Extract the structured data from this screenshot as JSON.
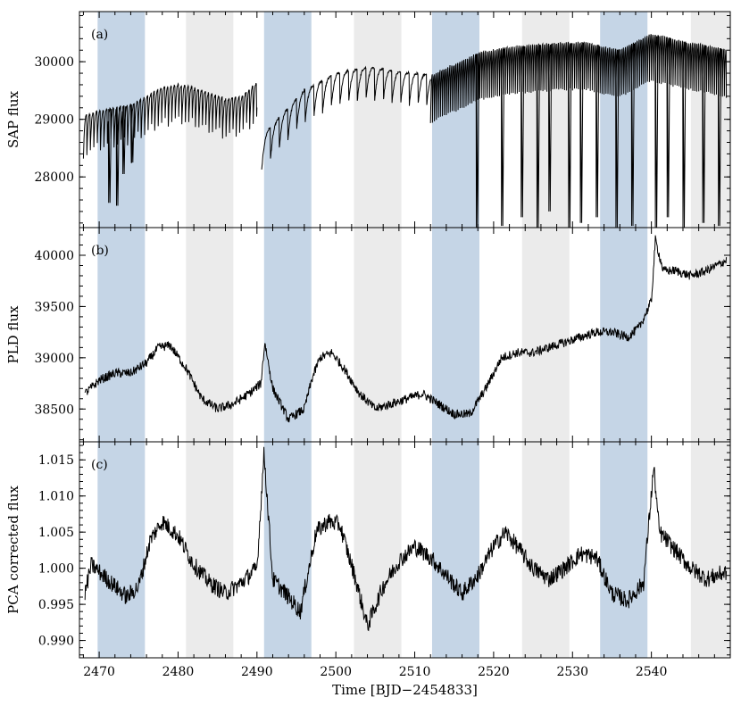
{
  "chart_data": {
    "type": "line",
    "xlabel": "Time [BJD−2454833]",
    "xlim": [
      2467.5,
      2550
    ],
    "xticks": [
      2470,
      2480,
      2490,
      2500,
      2510,
      2520,
      2530,
      2540
    ],
    "shade_colors": {
      "blue": "#c5d5e6",
      "gray": "#ebebeb"
    },
    "line_color": "#000000",
    "bands": [
      {
        "start": 2469.8,
        "end": 2475.8,
        "color": "blue"
      },
      {
        "start": 2481.0,
        "end": 2487.0,
        "color": "gray"
      },
      {
        "start": 2490.9,
        "end": 2496.9,
        "color": "blue"
      },
      {
        "start": 2502.3,
        "end": 2508.3,
        "color": "gray"
      },
      {
        "start": 2512.2,
        "end": 2518.2,
        "color": "blue"
      },
      {
        "start": 2523.6,
        "end": 2529.6,
        "color": "gray"
      },
      {
        "start": 2533.5,
        "end": 2539.5,
        "color": "blue"
      },
      {
        "start": 2545.0,
        "end": 2550.0,
        "color": "gray"
      }
    ],
    "panels": [
      {
        "tag": "(a)",
        "ylabel": "SAP flux",
        "ylim": [
          27120,
          30870
        ],
        "yticks": [
          28000,
          29000,
          30000
        ],
        "yticklabels": [
          "28000",
          "29000",
          "30000"
        ],
        "series": {
          "segments": [
            {
              "x": [
                2468.0,
                2470.0,
                2472.0,
                2474.0,
                2476.0,
                2478.0,
                2480.0,
                2482.0,
                2484.0,
                2486.0,
                2488.0,
                2490.0
              ],
              "y": [
                29050,
                29150,
                29200,
                29250,
                29400,
                29550,
                29600,
                29550,
                29450,
                29350,
                29400,
                29630
              ],
              "saw": {
                "amp": 820,
                "period": 0.43
              },
              "dips": [
                [
                  2471.2,
                  27550
                ],
                [
                  2472.2,
                  27500
                ],
                [
                  2473.0,
                  28050
                ],
                [
                  2474.1,
                  28250
                ]
              ]
            },
            {
              "x": [
                2490.6,
                2492.0,
                2494.0,
                2496.0,
                2498.0,
                2500.0,
                2502.0,
                2504.0,
                2506.0,
                2508.0,
                2510.0,
                2512.0
              ],
              "y": [
                28700,
                28900,
                29200,
                29500,
                29650,
                29800,
                29850,
                29900,
                29870,
                29820,
                29800,
                29780
              ],
              "saw": {
                "amp": 650,
                "period": 1.1
              },
              "dips": []
            },
            {
              "x": [
                2512.0,
                2514.0,
                2516.0,
                2518.0,
                2520.0,
                2522.0,
                2524.0,
                2526.0,
                2528.0,
                2530.0,
                2532.0,
                2534.0,
                2536.0,
                2538.0,
                2540.0,
                2542.0,
                2544.0,
                2546.0,
                2548.0,
                2549.5
              ],
              "y": [
                29750,
                29900,
                30000,
                30150,
                30200,
                30250,
                30280,
                30300,
                30320,
                30330,
                30330,
                30250,
                30200,
                30350,
                30480,
                30420,
                30350,
                30300,
                30250,
                30200
              ],
              "saw": {
                "amp": 900,
                "period": 0.25
              },
              "dips": [
                [
                  2517.8,
                  27100
                ],
                [
                  2521.0,
                  27150
                ],
                [
                  2523.5,
                  27300
                ],
                [
                  2525.5,
                  27100
                ],
                [
                  2527.0,
                  27400
                ],
                [
                  2529.5,
                  27100
                ],
                [
                  2531.0,
                  27200
                ],
                [
                  2533.0,
                  27300
                ],
                [
                  2535.5,
                  27100
                ],
                [
                  2537.5,
                  27150
                ],
                [
                  2540.5,
                  27100
                ],
                [
                  2542.0,
                  27300
                ],
                [
                  2544.0,
                  27100
                ],
                [
                  2546.5,
                  27200
                ],
                [
                  2548.5,
                  27150
                ]
              ]
            }
          ]
        }
      },
      {
        "tag": "(b)",
        "ylabel": "PLD flux",
        "ylim": [
          38180,
          40270
        ],
        "yticks": [
          38500,
          39000,
          39500,
          40000
        ],
        "yticklabels": [
          "38500",
          "39000",
          "39500",
          "40000"
        ],
        "series": {
          "x": [
            2468.2,
            2470.0,
            2472.0,
            2474.0,
            2476.0,
            2477.5,
            2479.0,
            2481.0,
            2483.0,
            2485.0,
            2487.0,
            2489.0,
            2490.5,
            2491.0,
            2492.0,
            2494.0,
            2496.0,
            2497.0,
            2498.0,
            2499.5,
            2501.0,
            2503.0,
            2505.0,
            2507.0,
            2509.0,
            2511.0,
            2513.0,
            2515.0,
            2517.0,
            2519.0,
            2521.0,
            2523.0,
            2525.0,
            2527.0,
            2529.0,
            2531.0,
            2533.0,
            2535.0,
            2537.0,
            2538.5,
            2540.0,
            2540.5,
            2541.5,
            2543.0,
            2545.0,
            2547.0,
            2549.5
          ],
          "y": [
            38650,
            38780,
            38850,
            38850,
            38950,
            39100,
            39120,
            38900,
            38600,
            38500,
            38550,
            38650,
            38750,
            39150,
            38700,
            38400,
            38500,
            38800,
            39000,
            39050,
            38900,
            38650,
            38500,
            38550,
            38600,
            38650,
            38550,
            38450,
            38450,
            38700,
            39000,
            39050,
            39050,
            39100,
            39150,
            39200,
            39250,
            39250,
            39200,
            39300,
            39550,
            40150,
            39850,
            39850,
            39800,
            39850,
            39950
          ],
          "noise": 45
        }
      },
      {
        "tag": "(c)",
        "ylabel": "PCA corrected flux",
        "ylim": [
          0.9876,
          1.0175
        ],
        "yticks": [
          0.99,
          0.995,
          1.0,
          1.005,
          1.01,
          1.015
        ],
        "yticklabels": [
          "0.990",
          "0.995",
          "1.000",
          "1.005",
          "1.010",
          "1.015"
        ],
        "series": {
          "x": [
            2468.2,
            2469.0,
            2470.5,
            2472.0,
            2473.5,
            2475.0,
            2476.5,
            2478.0,
            2480.0,
            2482.0,
            2484.0,
            2486.0,
            2488.0,
            2490.0,
            2490.9,
            2492.0,
            2494.0,
            2495.5,
            2497.5,
            2499.0,
            2500.5,
            2502.5,
            2504.0,
            2506.0,
            2508.0,
            2510.0,
            2512.0,
            2514.0,
            2516.0,
            2518.0,
            2520.0,
            2521.5,
            2523.0,
            2525.0,
            2527.0,
            2529.0,
            2531.0,
            2533.0,
            2535.0,
            2537.0,
            2539.0,
            2540.3,
            2541.0,
            2543.0,
            2545.0,
            2547.0,
            2549.5
          ],
          "y": [
            0.9965,
            1.0005,
            0.999,
            0.9975,
            0.996,
            0.9975,
            1.004,
            1.0065,
            1.0045,
            1.0005,
            0.998,
            0.9965,
            0.998,
            1.0,
            1.016,
            0.9985,
            0.996,
            0.994,
            1.005,
            1.0065,
            1.006,
            0.9985,
            0.992,
            0.9975,
            1.001,
            1.003,
            1.0015,
            0.999,
            0.9965,
            0.999,
            1.003,
            1.005,
            1.003,
            1.0,
            0.9985,
            1.0,
            1.002,
            1.0015,
            0.9965,
            0.9955,
            0.998,
            1.014,
            1.005,
            1.0025,
            1.0,
            0.9985,
            0.9995
          ],
          "noise": 0.0012
        }
      }
    ]
  }
}
